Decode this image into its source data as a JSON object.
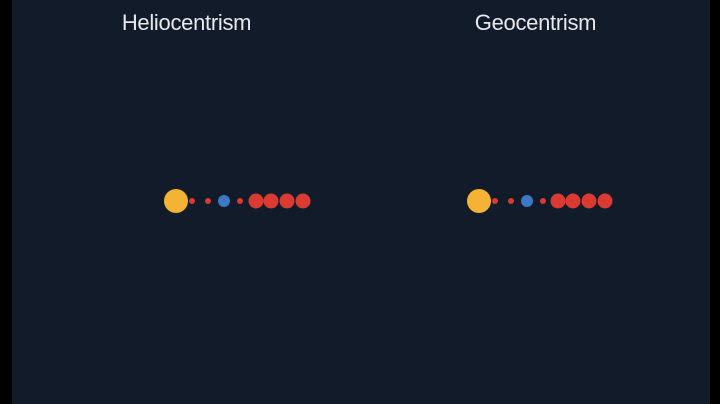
{
  "diagrams": [
    {
      "id": "heliocentrism",
      "title": "Heliocentrism",
      "bodies": [
        {
          "kind": "sun",
          "color": "#f5b335",
          "size": "large"
        },
        {
          "kind": "planet",
          "color": "#d93a32",
          "size": "tiny"
        },
        {
          "kind": "planet",
          "color": "#d93a32",
          "size": "tiny"
        },
        {
          "kind": "earth",
          "color": "#3d78c6",
          "size": "small"
        },
        {
          "kind": "planet",
          "color": "#d93a32",
          "size": "tiny"
        },
        {
          "kind": "planet",
          "color": "#d93a32",
          "size": "medium"
        },
        {
          "kind": "planet",
          "color": "#d93a32",
          "size": "medium"
        },
        {
          "kind": "planet",
          "color": "#d93a32",
          "size": "medium"
        },
        {
          "kind": "planet",
          "color": "#d93a32",
          "size": "medium"
        }
      ]
    },
    {
      "id": "geocentrism",
      "title": "Geocentrism",
      "bodies": [
        {
          "kind": "sun",
          "color": "#f5b335",
          "size": "large"
        },
        {
          "kind": "planet",
          "color": "#d93a32",
          "size": "tiny"
        },
        {
          "kind": "planet",
          "color": "#d93a32",
          "size": "tiny"
        },
        {
          "kind": "earth",
          "color": "#3d78c6",
          "size": "small"
        },
        {
          "kind": "planet",
          "color": "#d93a32",
          "size": "tiny"
        },
        {
          "kind": "planet",
          "color": "#d93a32",
          "size": "medium"
        },
        {
          "kind": "planet",
          "color": "#d93a32",
          "size": "medium"
        },
        {
          "kind": "planet",
          "color": "#d93a32",
          "size": "medium"
        },
        {
          "kind": "planet",
          "color": "#d93a32",
          "size": "medium"
        }
      ]
    }
  ],
  "colors": {
    "background": "#121b2a",
    "frame": "#000000",
    "title_text": "#e6e8ec"
  }
}
